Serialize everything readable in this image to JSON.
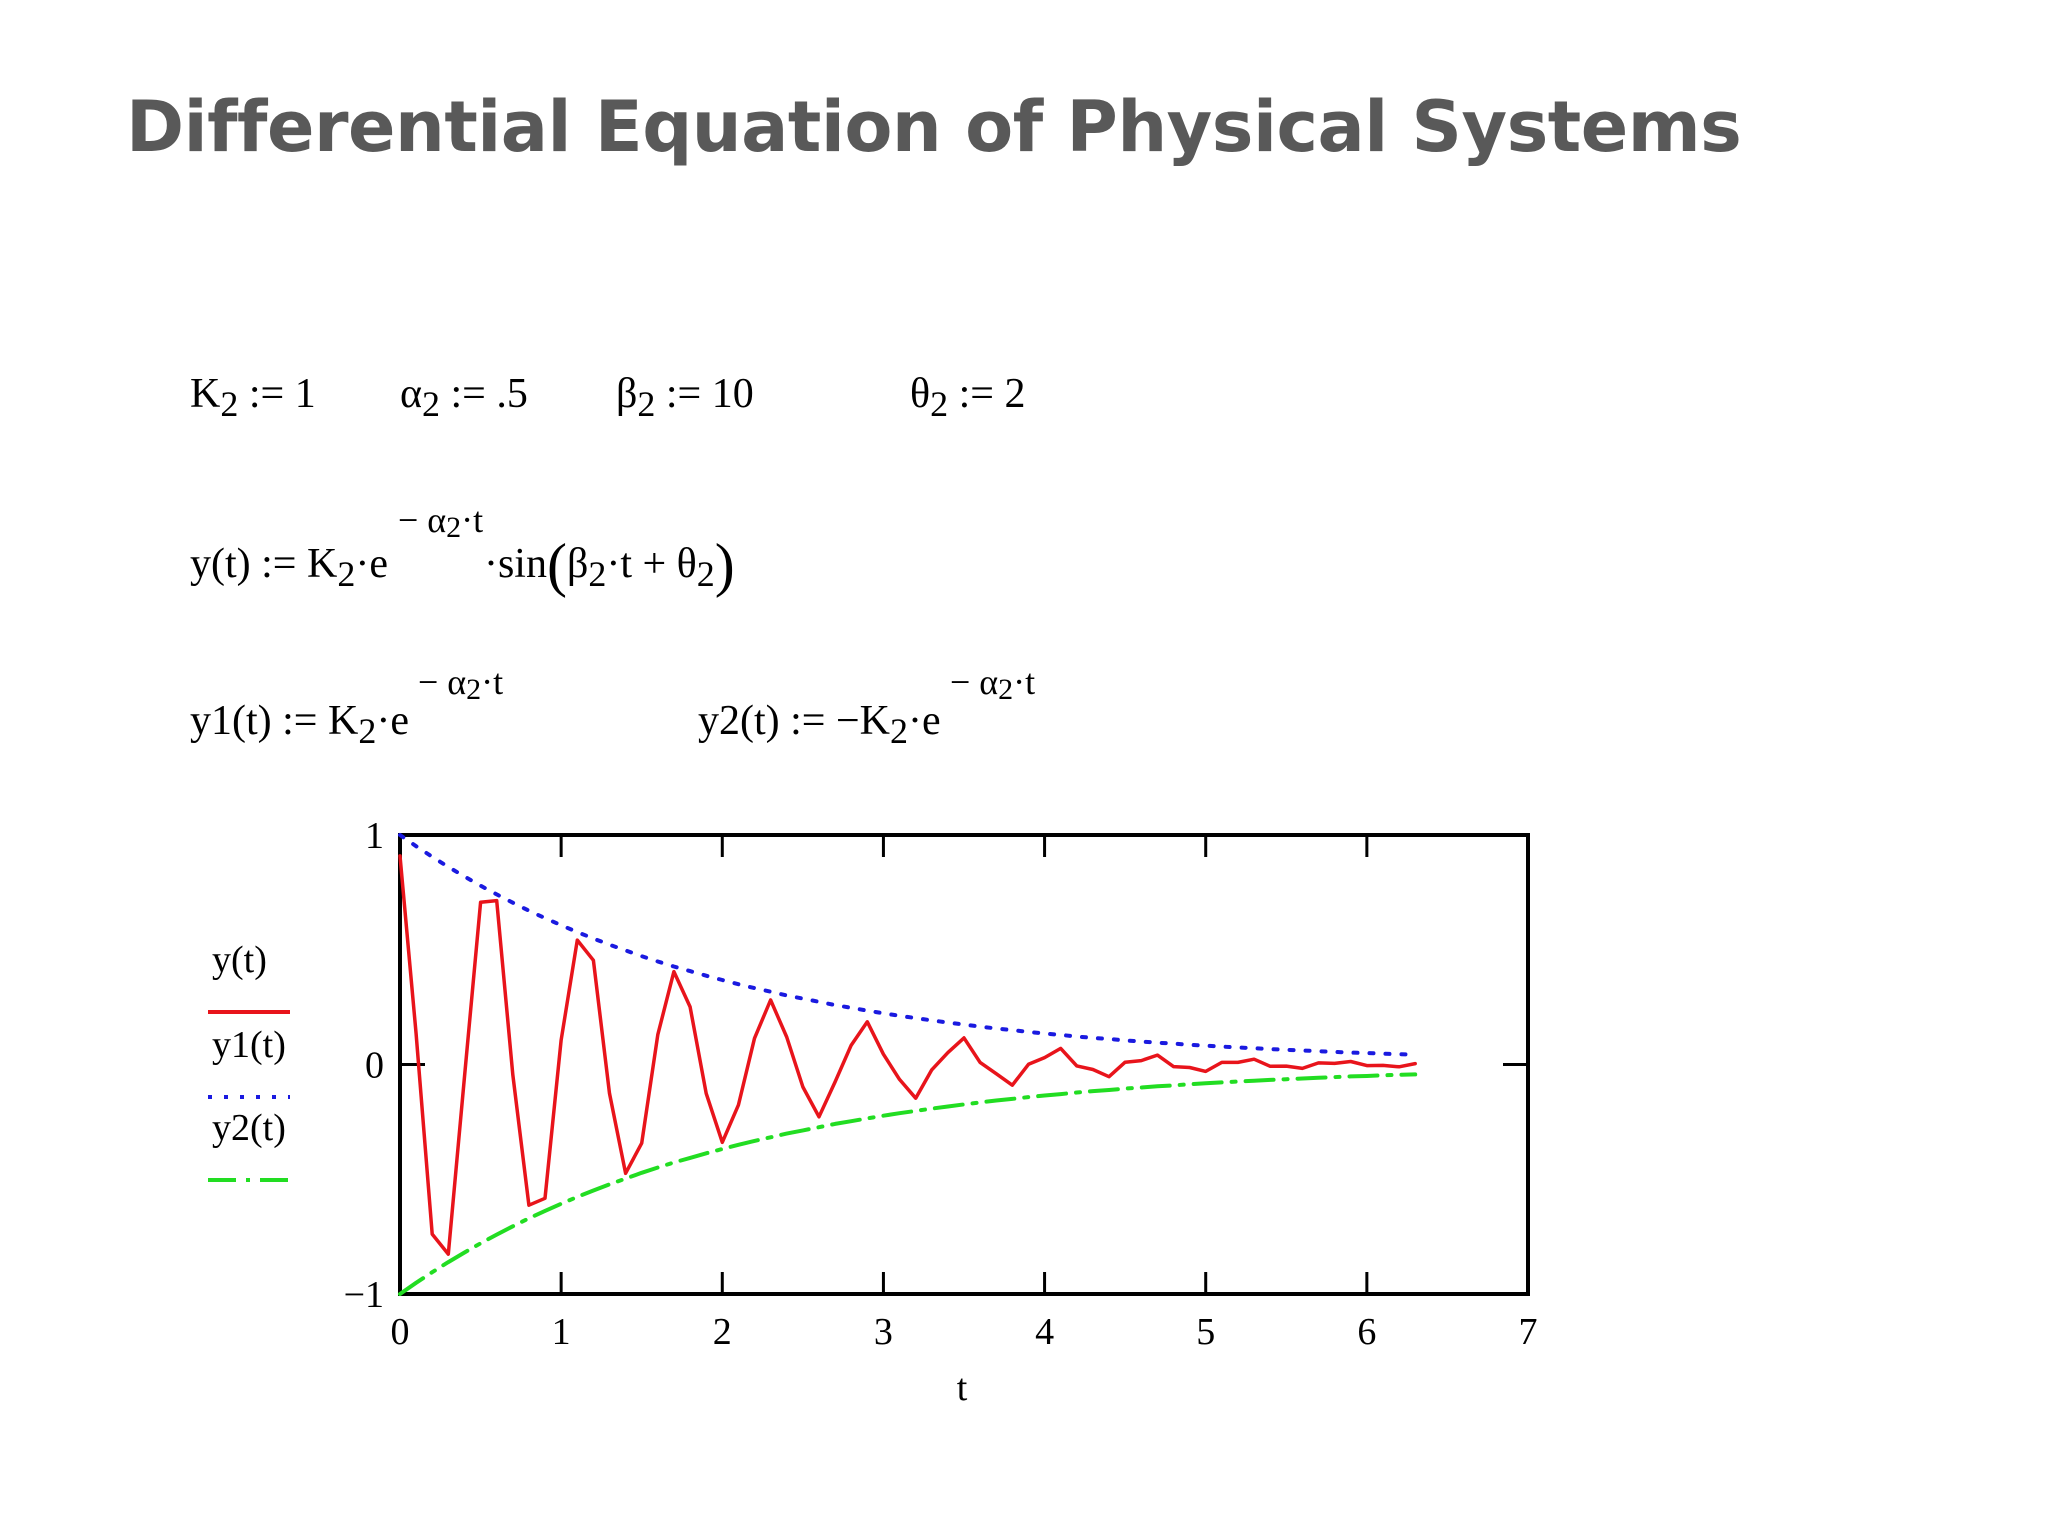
{
  "title": "Differential Equation of Physical Systems",
  "params": {
    "k2": {
      "sym": "K",
      "sub": "2",
      "rest": " := 1"
    },
    "alpha2": {
      "sym": "α",
      "sub": "2",
      "rest": " := .5"
    },
    "beta2": {
      "sym": "β",
      "sub": "2",
      "rest": " := 10"
    },
    "theta2": {
      "sym": "θ",
      "sub": "2",
      "rest": " := 2"
    }
  },
  "equations": {
    "y_def": {
      "lhs": "y(t) := K",
      "e": "·e",
      "exp_a": "− α",
      "exp_b": "·t",
      "sin": "·sin",
      "arg_a": "β",
      "arg_b": "·t + θ",
      "sub": "2"
    },
    "y1_def": {
      "lhs": "y1(t) := K",
      "e": "·e",
      "exp_a": "− α",
      "exp_b": "·t",
      "sub": "2"
    },
    "y2_def": {
      "lhs": "y2(t) := −K",
      "e": "·e",
      "exp_a": "− α",
      "exp_b": "·t",
      "sub": "2"
    }
  },
  "chart_data": {
    "type": "line",
    "xlabel": "t",
    "ylabel": "",
    "xlim": [
      0,
      7
    ],
    "ylim": [
      -1,
      1
    ],
    "x_ticks": [
      0,
      1,
      2,
      3,
      4,
      5,
      6,
      7
    ],
    "y_ticks": [
      -1,
      0,
      1
    ],
    "y_tick_labels": [
      "−1",
      "0",
      "1"
    ],
    "legend_position": "left",
    "x": [
      0,
      0.1,
      0.2,
      0.3,
      0.4,
      0.5,
      0.6,
      0.7,
      0.8,
      0.9,
      1.0,
      1.1,
      1.2,
      1.3,
      1.4,
      1.5,
      1.6,
      1.7,
      1.8,
      1.9,
      2.0,
      2.1,
      2.2,
      2.3,
      2.4,
      2.5,
      2.6,
      2.7,
      2.8,
      2.9,
      3.0,
      3.1,
      3.2,
      3.3,
      3.4,
      3.5,
      3.6,
      3.7,
      3.8,
      3.9,
      4.0,
      4.1,
      4.2,
      4.3,
      4.4,
      4.5,
      4.6,
      4.7,
      4.8,
      4.9,
      5.0,
      5.1,
      5.2,
      5.3,
      5.4,
      5.5,
      5.6,
      5.7,
      5.8,
      5.9,
      6.0,
      6.1,
      6.2,
      6.3
    ],
    "series": [
      {
        "name": "y(t)",
        "color": "#e8141b",
        "style": "solid",
        "values": [
          0.909,
          0.134,
          -0.739,
          -0.826,
          -0.053,
          0.707,
          0.714,
          -0.044,
          -0.613,
          -0.583,
          0.105,
          0.542,
          0.454,
          -0.126,
          -0.474,
          -0.343,
          0.13,
          0.405,
          0.251,
          -0.126,
          -0.339,
          -0.177,
          0.114,
          0.281,
          0.12,
          -0.098,
          -0.228,
          -0.076,
          0.084,
          0.186,
          0.045,
          -0.065,
          -0.147,
          -0.023,
          0.052,
          0.116,
          0.009,
          -0.04,
          -0.09,
          0.001,
          0.03,
          0.07,
          -0.006,
          -0.022,
          -0.053,
          0.01,
          0.017,
          0.041,
          -0.009,
          -0.013,
          -0.03,
          0.009,
          0.009,
          0.023,
          -0.008,
          -0.007,
          -0.017,
          0.007,
          0.005,
          0.013,
          -0.005,
          -0.004,
          -0.01,
          0.004
        ]
      },
      {
        "name": "y1(t)",
        "color": "#1a1ae0",
        "style": "dotted",
        "values": [
          1.0,
          0.951,
          0.905,
          0.861,
          0.819,
          0.779,
          0.741,
          0.705,
          0.67,
          0.638,
          0.607,
          0.577,
          0.549,
          0.522,
          0.497,
          0.472,
          0.449,
          0.427,
          0.407,
          0.387,
          0.368,
          0.35,
          0.333,
          0.317,
          0.301,
          0.287,
          0.273,
          0.259,
          0.247,
          0.235,
          0.223,
          0.212,
          0.202,
          0.192,
          0.183,
          0.174,
          0.165,
          0.157,
          0.15,
          0.142,
          0.135,
          0.129,
          0.122,
          0.116,
          0.111,
          0.105,
          0.1,
          0.095,
          0.091,
          0.086,
          0.082,
          0.078,
          0.074,
          0.071,
          0.067,
          0.064,
          0.061,
          0.058,
          0.055,
          0.052,
          0.05,
          0.047,
          0.045,
          0.043
        ]
      },
      {
        "name": "y2(t)",
        "color": "#22dd22",
        "style": "dashdot",
        "values": [
          -1.0,
          -0.951,
          -0.905,
          -0.861,
          -0.819,
          -0.779,
          -0.741,
          -0.705,
          -0.67,
          -0.638,
          -0.607,
          -0.577,
          -0.549,
          -0.522,
          -0.497,
          -0.472,
          -0.449,
          -0.427,
          -0.407,
          -0.387,
          -0.368,
          -0.35,
          -0.333,
          -0.317,
          -0.301,
          -0.287,
          -0.273,
          -0.259,
          -0.247,
          -0.235,
          -0.223,
          -0.212,
          -0.202,
          -0.192,
          -0.183,
          -0.174,
          -0.165,
          -0.157,
          -0.15,
          -0.142,
          -0.135,
          -0.129,
          -0.122,
          -0.116,
          -0.111,
          -0.105,
          -0.1,
          -0.095,
          -0.091,
          -0.086,
          -0.082,
          -0.078,
          -0.074,
          -0.071,
          -0.067,
          -0.064,
          -0.061,
          -0.058,
          -0.055,
          -0.052,
          -0.05,
          -0.047,
          -0.045,
          -0.043
        ]
      }
    ]
  }
}
